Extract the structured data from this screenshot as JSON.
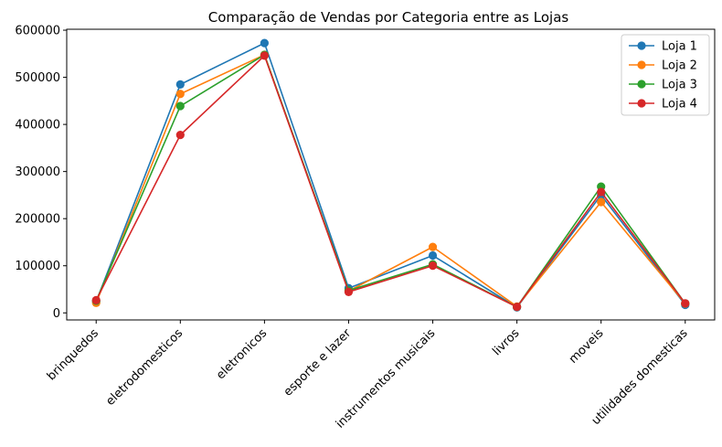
{
  "chart_data": {
    "type": "line",
    "title": "Comparação de Vendas por Categoria entre as Lojas",
    "xlabel": "",
    "ylabel": "",
    "categories": [
      "brinquedos",
      "eletrodomesticos",
      "eletronicos",
      "esporte e lazer",
      "instrumentos musicais",
      "livros",
      "moveis",
      "utilidades domesticas"
    ],
    "ylim": [
      -15000,
      602000
    ],
    "yticks": [
      0,
      100000,
      200000,
      300000,
      400000,
      500000,
      600000
    ],
    "grid": false,
    "legend_position": "top-right",
    "series": [
      {
        "name": "Loja 1",
        "color": "#1f77b4",
        "values": [
          23993,
          484913,
          572659,
          52387,
          121731,
          11713,
          250178,
          16931
        ]
      },
      {
        "name": "Loja 2",
        "color": "#ff7f0e",
        "values": [
          21262,
          464758,
          547773,
          46326,
          139987,
          13454,
          235234,
          19662
        ]
      },
      {
        "name": "Loja 3",
        "color": "#2ca02c",
        "values": [
          25869,
          438984,
          547699,
          47456,
          103174,
          12665,
          268095,
          20080
        ]
      },
      {
        "name": "Loja 4",
        "color": "#d62728",
        "values": [
          27015,
          377680,
          545966,
          44466,
          100136,
          12664,
          256706,
          20098
        ]
      }
    ]
  }
}
